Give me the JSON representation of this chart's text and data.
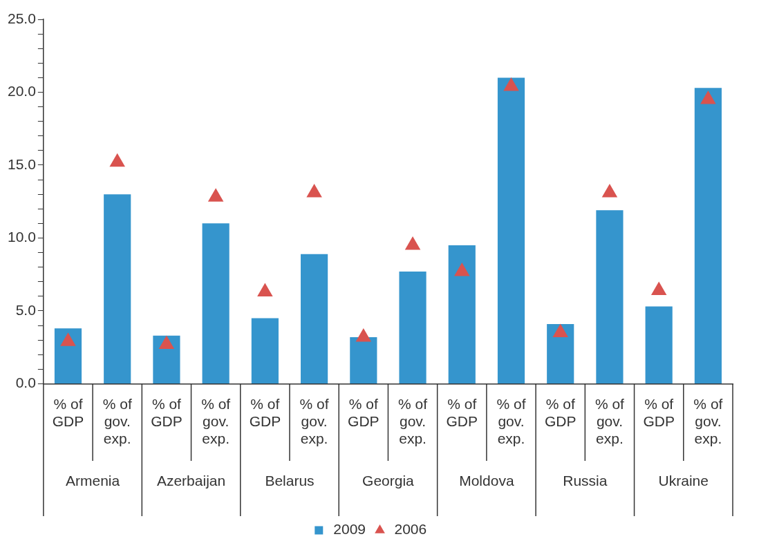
{
  "chart_data": {
    "type": "bar",
    "categories": [
      "% of GDP",
      "% of gov. exp.",
      "% of GDP",
      "% of gov. exp.",
      "% of GDP",
      "% of gov. exp.",
      "% of GDP",
      "% of gov. exp.",
      "% of GDP",
      "% of gov. exp.",
      "% of GDP",
      "% of gov. exp.",
      "% of GDP",
      "% of gov. exp."
    ],
    "series": [
      {
        "name": "2009",
        "color": "#3595cd",
        "values": [
          3.8,
          13.0,
          3.3,
          11.0,
          4.5,
          8.9,
          3.2,
          7.7,
          9.5,
          21.0,
          4.1,
          11.9,
          5.3,
          20.3
        ]
      },
      {
        "name": "2006",
        "type": "scatter",
        "marker": "triangle",
        "color": "#d9534f",
        "values": [
          2.9,
          15.2,
          2.7,
          12.8,
          6.3,
          13.1,
          3.2,
          9.5,
          7.7,
          20.4,
          3.5,
          13.1,
          6.4,
          19.5
        ]
      }
    ],
    "annotations": [
      "Armenia",
      "Azerbaijan",
      "Belarus",
      "Georgia",
      "Moldova",
      "Russia",
      "Ukraine"
    ],
    "ylim": [
      0,
      25
    ],
    "yticks": [
      {
        "value": 0,
        "label": "0.0"
      },
      {
        "value": 1,
        "label": null
      },
      {
        "value": 2,
        "label": null
      },
      {
        "value": 3,
        "label": null
      },
      {
        "value": 4,
        "label": null
      },
      {
        "value": 5,
        "label": "5.0"
      },
      {
        "value": 6,
        "label": null
      },
      {
        "value": 7,
        "label": null
      },
      {
        "value": 8,
        "label": null
      },
      {
        "value": 9,
        "label": null
      },
      {
        "value": 10,
        "label": "10.0"
      },
      {
        "value": 11,
        "label": null
      },
      {
        "value": 12,
        "label": null
      },
      {
        "value": 13,
        "label": null
      },
      {
        "value": 14,
        "label": null
      },
      {
        "value": 15,
        "label": "15.0"
      },
      {
        "value": 16,
        "label": null
      },
      {
        "value": 17,
        "label": null
      },
      {
        "value": 18,
        "label": null
      },
      {
        "value": 19,
        "label": null
      },
      {
        "value": 20,
        "label": "20.0"
      },
      {
        "value": 21,
        "label": null
      },
      {
        "value": 22,
        "label": null
      },
      {
        "value": 23,
        "label": null
      },
      {
        "value": 24,
        "label": null
      },
      {
        "value": 25,
        "label": "25.0"
      }
    ],
    "grid": false,
    "legend": "bottom"
  }
}
